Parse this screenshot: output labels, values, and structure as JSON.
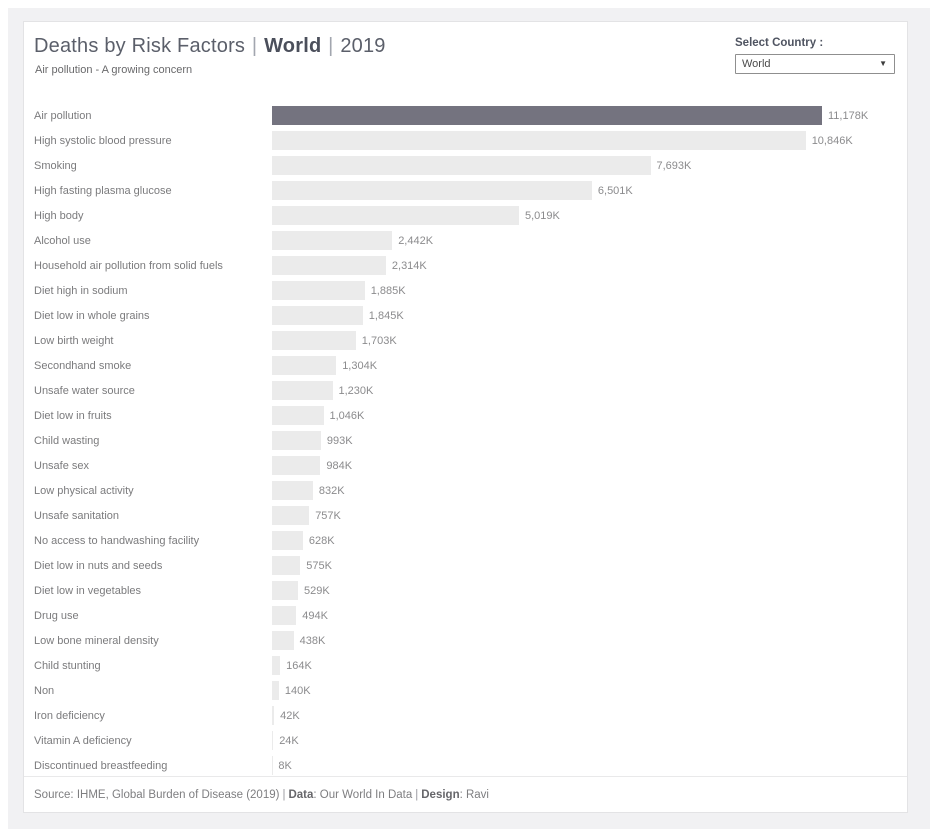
{
  "header": {
    "title_part1": "Deaths by Risk Factors",
    "pipe": "|",
    "title_region": "World",
    "title_year": "2019",
    "subtitle": "Air pollution - A growing concern"
  },
  "controls": {
    "select_label": "Select Country :",
    "selected_country": "World",
    "dropdown_icon": "chevron-down",
    "arrow_glyph": "▼"
  },
  "chart_data": {
    "type": "bar",
    "orientation": "horizontal",
    "title": "Deaths by Risk Factors | World | 2019",
    "subtitle": "Air pollution - A growing concern",
    "unit": "thousands of deaths (K)",
    "grid": false,
    "legend": "none",
    "xlim": [
      0,
      11500
    ],
    "highlight_index": 0,
    "highlight_color": "#74737f",
    "bar_color": "#ebebeb",
    "categories": [
      "Air pollution",
      "High systolic blood pressure",
      "Smoking",
      "High fasting plasma glucose",
      "High body",
      "Alcohol use",
      "Household air pollution from solid fuels",
      "Diet high in sodium",
      "Diet low in whole grains",
      "Low birth weight",
      "Secondhand smoke",
      "Unsafe water source",
      "Diet low in fruits",
      "Child wasting",
      "Unsafe sex",
      "Low physical activity",
      "Unsafe sanitation",
      "No access to handwashing facility",
      "Diet low in nuts and seeds",
      "Diet low in vegetables",
      "Drug use",
      "Low bone mineral density",
      "Child stunting",
      "Non",
      "Iron deficiency",
      "Vitamin A deficiency",
      "Discontinued breastfeeding"
    ],
    "values": [
      11178,
      10846,
      7693,
      6501,
      5019,
      2442,
      2314,
      1885,
      1845,
      1703,
      1304,
      1230,
      1046,
      993,
      984,
      832,
      757,
      628,
      575,
      529,
      494,
      438,
      164,
      140,
      42,
      24,
      8
    ],
    "value_labels": [
      "11,178K",
      "10,846K",
      "7,693K",
      "6,501K",
      "5,019K",
      "2,442K",
      "2,314K",
      "1,885K",
      "1,845K",
      "1,703K",
      "1,304K",
      "1,230K",
      "1,046K",
      "993K",
      "984K",
      "832K",
      "757K",
      "628K",
      "575K",
      "529K",
      "494K",
      "438K",
      "164K",
      "140K",
      "42K",
      "24K",
      "8K"
    ]
  },
  "footer": {
    "source": "Source: IHME, Global Burden of Disease (2019)",
    "divider": "|",
    "data_label": "Data",
    "data_text": ": Our World In Data",
    "design_label": "Design",
    "design_text": ": Ravi"
  }
}
